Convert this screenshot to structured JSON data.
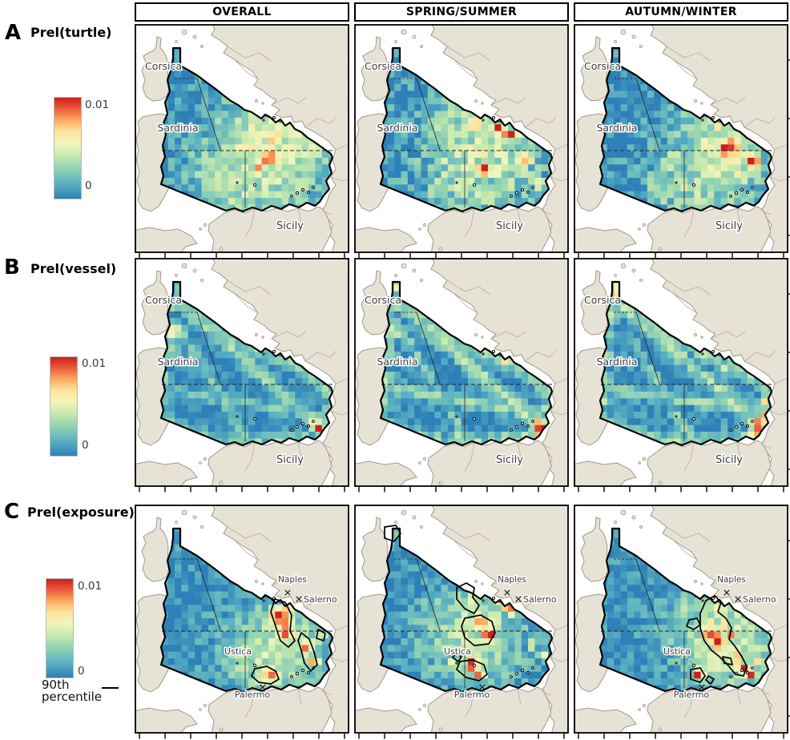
{
  "columns": [
    {
      "label": "OVERALL"
    },
    {
      "label": "SPRING/SUMMER"
    },
    {
      "label": "AUTUMN/WINTER"
    }
  ],
  "rows": [
    {
      "letter": "A",
      "metric": "Prel(turtle)",
      "cbar_max": "0.01",
      "cbar_min": "0"
    },
    {
      "letter": "B",
      "metric": "Prel(vessel)",
      "cbar_max": "0.01",
      "cbar_min": "0"
    },
    {
      "letter": "C",
      "metric": "Prel(exposure)",
      "cbar_max": "0.01",
      "cbar_min": "0"
    }
  ],
  "percentile": {
    "line1": "90th",
    "line2": "percentile"
  },
  "map_labels": {
    "corsica": "Corsica",
    "sardinia": "Sardinia",
    "sicily": "Sicily",
    "naples": "Naples",
    "salerno": "Salerno",
    "ustica": "Ustica",
    "palermo": "Palermo"
  },
  "colors": {
    "sea": "#ffffff",
    "land": "#e6e3d6",
    "land_stroke": "#a09888",
    "study_border": "#000000",
    "contour": "#000000",
    "label_text": "#3d3d3d",
    "colormap": [
      "#2e80b8",
      "#57aec2",
      "#8ed1b4",
      "#c8e9ae",
      "#f2f5bb",
      "#fee29a",
      "#fca75e",
      "#ea5b3c",
      "#cf1d1b"
    ],
    "colormap_positions": [
      0,
      0.14,
      0.29,
      0.43,
      0.55,
      0.67,
      0.78,
      0.89,
      1
    ]
  },
  "panels": [
    {
      "id": "turtle-overall",
      "row": "A",
      "col": "OVERALL",
      "labelset": "islands",
      "seed": 1,
      "noise": 0.16,
      "edge": 0,
      "blobs": [
        [
          165,
          160,
          55,
          0.5
        ],
        [
          135,
          195,
          45,
          0.4
        ],
        [
          205,
          140,
          40,
          0.42
        ],
        [
          105,
          180,
          35,
          0.3
        ],
        [
          167,
          167,
          9,
          1
        ],
        [
          171,
          150,
          7,
          0.88
        ],
        [
          177,
          136,
          7,
          0.75
        ],
        [
          190,
          121,
          7,
          0.55
        ],
        [
          152,
          180,
          6,
          0.72
        ],
        [
          200,
          160,
          8,
          0.6
        ],
        [
          222,
          131,
          6,
          0.5
        ],
        [
          120,
          210,
          20,
          0.35
        ]
      ],
      "streaks": [],
      "contours": []
    },
    {
      "id": "turtle-spring-summer",
      "row": "A",
      "col": "SPRING/SUMMER",
      "labelset": "islands",
      "seed": 2,
      "noise": 0.2,
      "edge": 0,
      "blobs": [
        [
          175,
          150,
          50,
          0.45
        ],
        [
          140,
          190,
          42,
          0.38
        ],
        [
          120,
          130,
          32,
          0.34
        ],
        [
          178,
          131,
          7,
          1
        ],
        [
          193,
          137,
          6,
          1
        ],
        [
          163,
          182,
          9,
          1
        ],
        [
          198,
          118,
          6,
          0.9
        ],
        [
          150,
          125,
          6,
          0.8
        ],
        [
          215,
          170,
          7,
          0.7
        ],
        [
          230,
          200,
          6,
          0.8
        ],
        [
          97,
          45,
          5,
          0.5
        ],
        [
          140,
          160,
          12,
          0.5
        ]
      ],
      "streaks": [],
      "contours": []
    },
    {
      "id": "turtle-autumn-winter",
      "row": "A",
      "col": "AUTUMN/WINTER",
      "labelset": "islands",
      "seed": 3,
      "noise": 0.17,
      "edge": 0,
      "blobs": [
        [
          185,
          165,
          50,
          0.45
        ],
        [
          150,
          195,
          40,
          0.34
        ],
        [
          193,
          155,
          13,
          1
        ],
        [
          222,
          172,
          8,
          1
        ],
        [
          205,
          188,
          7,
          0.75
        ],
        [
          178,
          128,
          7,
          0.6
        ],
        [
          232,
          150,
          6,
          0.6
        ],
        [
          130,
          175,
          25,
          0.3
        ],
        [
          110,
          205,
          20,
          0.3
        ]
      ],
      "streaks": [],
      "contours": []
    },
    {
      "id": "vessel-overall",
      "row": "B",
      "col": "OVERALL",
      "labelset": "islands",
      "seed": 4,
      "noise": 0.1,
      "edge": 0.32,
      "blobs": [
        [
          48,
          92,
          10,
          0.5
        ],
        [
          44,
          116,
          8,
          0.4
        ],
        [
          152,
          112,
          6,
          0.55
        ],
        [
          230,
          212,
          6,
          1
        ],
        [
          222,
          206,
          5,
          0.6
        ],
        [
          132,
          228,
          12,
          0.33
        ],
        [
          176,
          228,
          10,
          0.3
        ],
        [
          57,
          42,
          5,
          0.45
        ],
        [
          245,
          170,
          5,
          0.4
        ],
        [
          105,
          232,
          8,
          0.35
        ]
      ],
      "streaks": [
        [
          58,
          58,
          228,
          208,
          7,
          0.3
        ],
        [
          40,
          165,
          230,
          196,
          5,
          0.24
        ],
        [
          62,
          96,
          140,
          230,
          5,
          0.22
        ]
      ],
      "contours": []
    },
    {
      "id": "vessel-spring-summer",
      "row": "B",
      "col": "SPRING/SUMMER",
      "labelset": "islands",
      "seed": 5,
      "noise": 0.12,
      "edge": 0.38,
      "blobs": [
        [
          53,
          38,
          6,
          0.6
        ],
        [
          68,
          48,
          4,
          0.7
        ],
        [
          170,
          113,
          5,
          1
        ],
        [
          186,
          127,
          4,
          0.7
        ],
        [
          235,
          215,
          9,
          1
        ],
        [
          228,
          205,
          6,
          0.7
        ],
        [
          46,
          92,
          9,
          0.5
        ],
        [
          130,
          228,
          10,
          0.35
        ],
        [
          245,
          168,
          5,
          0.5
        ],
        [
          202,
          228,
          6,
          0.4
        ]
      ],
      "streaks": [
        [
          58,
          58,
          228,
          208,
          7,
          0.35
        ],
        [
          40,
          163,
          232,
          194,
          6,
          0.3
        ],
        [
          64,
          98,
          142,
          230,
          5,
          0.26
        ],
        [
          150,
          115,
          235,
          160,
          5,
          0.26
        ]
      ],
      "contours": []
    },
    {
      "id": "vessel-autumn-winter",
      "row": "B",
      "col": "AUTUMN/WINTER",
      "labelset": "islands",
      "seed": 6,
      "noise": 0.12,
      "edge": 0.36,
      "blobs": [
        [
          54,
          33,
          4,
          1
        ],
        [
          54,
          42,
          4,
          1
        ],
        [
          54,
          50,
          4,
          0.7
        ],
        [
          46,
          70,
          7,
          0.5
        ],
        [
          232,
          210,
          8,
          1
        ],
        [
          238,
          200,
          6,
          0.8
        ],
        [
          228,
          222,
          6,
          0.9
        ],
        [
          237,
          178,
          5,
          0.6
        ],
        [
          120,
          230,
          10,
          0.3
        ],
        [
          170,
          120,
          8,
          0.4
        ],
        [
          190,
          140,
          8,
          0.4
        ]
      ],
      "streaks": [
        [
          58,
          58,
          228,
          205,
          7,
          0.34
        ],
        [
          40,
          162,
          235,
          192,
          6,
          0.3
        ],
        [
          70,
          100,
          150,
          230,
          5,
          0.24
        ],
        [
          150,
          115,
          235,
          160,
          5,
          0.3
        ]
      ],
      "contours": []
    },
    {
      "id": "exposure-overall",
      "row": "C",
      "col": "OVERALL",
      "labelset": "cities",
      "seed": 7,
      "noise": 0.14,
      "edge": 0,
      "blobs": [
        [
          180,
          185,
          50,
          0.42
        ],
        [
          182,
          140,
          12,
          1
        ],
        [
          188,
          158,
          9,
          0.92
        ],
        [
          215,
          180,
          8,
          0.85
        ],
        [
          222,
          196,
          7,
          0.8
        ],
        [
          170,
          212,
          9,
          0.95
        ],
        [
          152,
          218,
          6,
          0.7
        ],
        [
          232,
          165,
          6,
          0.6
        ],
        [
          196,
          124,
          6,
          0.7
        ],
        [
          140,
          190,
          20,
          0.4
        ]
      ],
      "streaks": [],
      "contours": [
        [
          [
            175,
            118
          ],
          [
            188,
            122
          ],
          [
            196,
            138
          ],
          [
            194,
            158
          ],
          [
            200,
            170
          ],
          [
            192,
            178
          ],
          [
            182,
            170
          ],
          [
            176,
            152
          ],
          [
            170,
            134
          ]
        ],
        [
          [
            208,
            160
          ],
          [
            218,
            168
          ],
          [
            224,
            184
          ],
          [
            228,
            200
          ],
          [
            220,
            208
          ],
          [
            212,
            198
          ],
          [
            208,
            182
          ],
          [
            204,
            170
          ]
        ],
        [
          [
            150,
            205
          ],
          [
            165,
            202
          ],
          [
            176,
            208
          ],
          [
            180,
            218
          ],
          [
            170,
            224
          ],
          [
            155,
            222
          ],
          [
            146,
            214
          ]
        ],
        [
          [
            229,
            156
          ],
          [
            238,
            161
          ],
          [
            236,
            170
          ],
          [
            227,
            167
          ]
        ]
      ]
    },
    {
      "id": "exposure-spring-summer",
      "row": "C",
      "col": "SPRING/SUMMER",
      "labelset": "cities",
      "seed": 8,
      "noise": 0.15,
      "edge": 0,
      "blobs": [
        [
          150,
          160,
          50,
          0.38
        ],
        [
          48,
          38,
          5,
          0.85
        ],
        [
          175,
          108,
          6,
          1
        ],
        [
          183,
          116,
          6,
          1
        ],
        [
          190,
          124,
          7,
          1
        ],
        [
          196,
          132,
          6,
          0.92
        ],
        [
          150,
          115,
          10,
          0.55
        ],
        [
          160,
          150,
          12,
          0.75
        ],
        [
          168,
          162,
          8,
          0.92
        ],
        [
          155,
          172,
          7,
          0.6
        ],
        [
          148,
          200,
          8,
          0.95
        ],
        [
          156,
          211,
          6,
          1
        ],
        [
          220,
          175,
          5,
          0.55
        ],
        [
          236,
          190,
          5,
          0.6
        ],
        [
          120,
          196,
          4,
          0.65
        ],
        [
          96,
          46,
          4,
          0.5
        ]
      ],
      "streaks": [],
      "contours": [
        [
          [
            38,
            28
          ],
          [
            52,
            26
          ],
          [
            58,
            36
          ],
          [
            50,
            46
          ],
          [
            38,
            42
          ]
        ],
        [
          [
            128,
            104
          ],
          [
            140,
            98
          ],
          [
            150,
            104
          ],
          [
            148,
            116
          ],
          [
            156,
            126
          ],
          [
            150,
            136
          ],
          [
            138,
            130
          ],
          [
            128,
            118
          ]
        ],
        [
          [
            138,
            142
          ],
          [
            158,
            138
          ],
          [
            172,
            146
          ],
          [
            176,
            160
          ],
          [
            168,
            174
          ],
          [
            150,
            176
          ],
          [
            138,
            166
          ],
          [
            134,
            152
          ]
        ],
        [
          [
            127,
            185
          ],
          [
            134,
            190
          ],
          [
            130,
            196
          ],
          [
            123,
            191
          ]
        ],
        [
          [
            132,
            196
          ],
          [
            148,
            194
          ],
          [
            162,
            200
          ],
          [
            166,
            212
          ],
          [
            156,
            220
          ],
          [
            140,
            216
          ],
          [
            128,
            206
          ]
        ]
      ]
    },
    {
      "id": "exposure-autumn-winter",
      "row": "C",
      "col": "AUTUMN/WINTER",
      "labelset": "cities",
      "seed": 9,
      "noise": 0.15,
      "edge": 0,
      "blobs": [
        [
          190,
          170,
          50,
          0.45
        ],
        [
          172,
          164,
          10,
          1
        ],
        [
          180,
          172,
          8,
          1
        ],
        [
          168,
          152,
          7,
          0.85
        ],
        [
          185,
          132,
          6,
          0.75
        ],
        [
          190,
          150,
          6,
          0.9
        ],
        [
          196,
          162,
          5,
          0.8
        ],
        [
          205,
          190,
          6,
          0.9
        ],
        [
          212,
          205,
          7,
          1
        ],
        [
          220,
          212,
          6,
          0.9
        ],
        [
          155,
          212,
          6,
          0.95
        ],
        [
          230,
          195,
          5,
          0.7
        ],
        [
          240,
          180,
          4,
          0.6
        ],
        [
          140,
          135,
          15,
          0.35
        ]
      ],
      "streaks": [],
      "contours": [
        [
          [
            144,
            144
          ],
          [
            154,
            142
          ],
          [
            158,
            150
          ],
          [
            150,
            156
          ],
          [
            141,
            152
          ]
        ],
        [
          [
            165,
            120
          ],
          [
            176,
            114
          ],
          [
            184,
            122
          ],
          [
            180,
            134
          ],
          [
            190,
            142
          ],
          [
            197,
            154
          ],
          [
            194,
            168
          ],
          [
            202,
            178
          ],
          [
            210,
            190
          ],
          [
            216,
            202
          ],
          [
            212,
            214
          ],
          [
            202,
            212
          ],
          [
            192,
            200
          ],
          [
            182,
            190
          ],
          [
            172,
            182
          ],
          [
            163,
            170
          ],
          [
            158,
            154
          ],
          [
            158,
            136
          ]
        ],
        [
          [
            186,
            190
          ],
          [
            196,
            192
          ],
          [
            198,
            200
          ],
          [
            188,
            198
          ]
        ],
        [
          [
            146,
            206
          ],
          [
            158,
            204
          ],
          [
            164,
            214
          ],
          [
            158,
            222
          ],
          [
            146,
            218
          ]
        ],
        [
          [
            168,
            214
          ],
          [
            175,
            218
          ],
          [
            171,
            224
          ],
          [
            165,
            219
          ]
        ]
      ]
    }
  ]
}
